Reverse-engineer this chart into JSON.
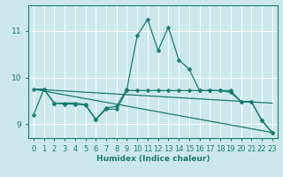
{
  "xlabel": "Humidex (Indice chaleur)",
  "background_color": "#cce8ed",
  "grid_color": "#ffffff",
  "line_color": "#1a7a6e",
  "xlim": [
    -0.5,
    23.5
  ],
  "ylim": [
    8.7,
    11.55
  ],
  "yticks": [
    9,
    10,
    11
  ],
  "xticks": [
    0,
    1,
    2,
    3,
    4,
    5,
    6,
    7,
    8,
    9,
    10,
    11,
    12,
    13,
    14,
    15,
    16,
    17,
    18,
    19,
    20,
    21,
    22,
    23
  ],
  "series1": [
    9.2,
    9.75,
    9.45,
    9.45,
    9.45,
    9.42,
    9.1,
    9.35,
    9.38,
    9.75,
    10.9,
    11.25,
    10.58,
    11.08,
    10.38,
    10.18,
    9.72,
    9.72,
    9.72,
    9.68,
    9.48,
    9.48,
    9.08,
    8.82
  ],
  "series2": [
    9.75,
    9.75,
    9.45,
    9.43,
    9.43,
    9.41,
    9.1,
    9.32,
    9.32,
    9.72,
    9.72,
    9.72,
    9.72,
    9.72,
    9.72,
    9.72,
    9.72,
    9.72,
    9.72,
    9.72,
    9.48,
    9.48,
    9.08,
    8.82
  ],
  "series3_start": 9.75,
  "series3_end": 9.45,
  "series4_start": 9.75,
  "series4_end": 8.82,
  "marker": "D",
  "marker_size": 2.5,
  "linewidth": 0.9,
  "xlabel_fontsize": 6.5,
  "tick_fontsize": 6.0
}
